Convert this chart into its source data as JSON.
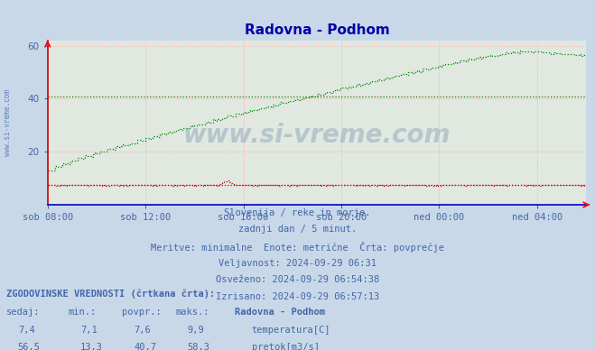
{
  "title": "Radovna - Podhom",
  "bg_color": "#c8d8e8",
  "plot_bg_color": "#e0e8e0",
  "text_color": "#4466aa",
  "title_color": "#0000aa",
  "x_labels": [
    "sob 08:00",
    "sob 12:00",
    "sob 16:00",
    "sob 20:00",
    "ned 00:00",
    "ned 04:00"
  ],
  "x_ticks_norm": [
    0.0,
    0.1818,
    0.3636,
    0.5455,
    0.7273,
    0.9091
  ],
  "y_min": 0,
  "y_max": 60,
  "y_ticks": [
    20,
    40,
    60
  ],
  "grid_color": "#ffaaaa",
  "temp_color": "#cc0000",
  "flow_color": "#008800",
  "temp_avg": 7.6,
  "flow_avg": 40.7,
  "temp_min": 7.1,
  "temp_max": 9.9,
  "temp_current": 7.4,
  "flow_min": 13.3,
  "flow_max": 58.3,
  "flow_current": 56.5,
  "subtitle1": "Slovenija / reke in morje.",
  "subtitle2": "zadnji dan / 5 minut.",
  "subtitle3": "Meritve: minimalne  Enote: metrične  Črta: povprečje",
  "validity": "Veljavnost: 2024-09-29 06:31",
  "updated": "Osveženo: 2024-09-29 06:54:38",
  "drawn": "Izrisano: 2024-09-29 06:57:13",
  "hist_label": "ZGODOVINSKE VREDNOSTI (črtkana črta):",
  "col_sedaj": "sedaj:",
  "col_min": "min.:",
  "col_povpr": "povpr.:",
  "col_maks": "maks.:",
  "station": "Radovna - Podhom",
  "watermark": "www.si-vreme.com"
}
